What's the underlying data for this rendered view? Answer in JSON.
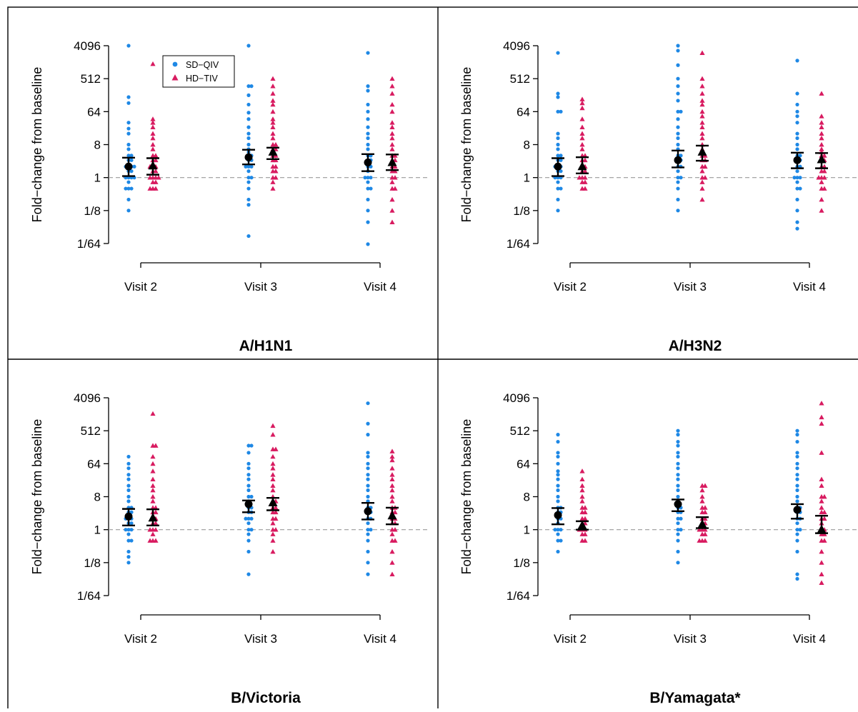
{
  "chart_data": [
    {
      "type": "scatter",
      "title": "A/H1N1",
      "ylabel": "Fold−change from baseline",
      "y_scale": "log2",
      "ylim": [
        "1/64",
        "4096"
      ],
      "y_ticks": [
        "1/64",
        "1/8",
        "1",
        "8",
        "64",
        "512",
        "4096"
      ],
      "categories": [
        "Visit 2",
        "Visit 3",
        "Visit 4"
      ],
      "reference_line": 1,
      "show_legend": true,
      "series": [
        {
          "name": "SD−QIV",
          "points": [
            [
              4096,
              160,
              110,
              32,
              22,
              16,
              8,
              6,
              4,
              4,
              3,
              3,
              2,
              2,
              2,
              2,
              1.5,
              1.5,
              1,
              1,
              1,
              1,
              0.75,
              0.5,
              0.5,
              0.5,
              0.25,
              0.125
            ],
            [
              4096,
              320,
              320,
              180,
              100,
              60,
              40,
              24,
              16,
              12,
              8,
              6,
              5,
              4,
              4,
              3,
              3,
              2,
              2,
              2,
              1.5,
              1,
              1,
              0.75,
              0.5,
              0.25,
              0.18,
              0.025
            ],
            [
              2600,
              320,
              240,
              100,
              64,
              40,
              24,
              16,
              12,
              8,
              6,
              4,
              4,
              3,
              3,
              2,
              2,
              1.5,
              1,
              1,
              1,
              0.75,
              0.5,
              0.5,
              0.25,
              0.125,
              0.06,
              0.015
            ]
          ],
          "mean": [
            2.0,
            3.6,
            2.6
          ],
          "ci": [
            [
              1.1,
              3.5
            ],
            [
              2.3,
              5.8
            ],
            [
              1.5,
              4.4
            ]
          ]
        },
        {
          "name": "HD−TIV",
          "points": [
            [
              1300,
              40,
              32,
              24,
              16,
              12,
              8,
              6,
              4,
              4,
              3,
              3,
              2,
              2,
              2,
              1.5,
              1.5,
              1,
              1,
              1,
              1,
              0.75,
              0.75,
              0.5,
              0.5,
              0.5
            ],
            [
              512,
              320,
              200,
              128,
              100,
              64,
              40,
              32,
              24,
              16,
              12,
              8,
              8,
              6,
              6,
              5,
              4,
              4,
              3,
              3,
              2,
              2,
              1.5,
              1.5,
              1,
              1,
              0.75,
              0.5
            ],
            [
              512,
              320,
              200,
              100,
              64,
              32,
              24,
              16,
              12,
              8,
              6,
              4,
              4,
              3,
              3,
              2,
              2,
              1.5,
              1.5,
              1,
              1,
              0.75,
              0.5,
              0.5,
              0.25,
              0.125,
              0.06
            ]
          ],
          "mean": [
            2.1,
            5.0,
            2.6
          ],
          "ci": [
            [
              1.2,
              3.4
            ],
            [
              3.2,
              6.6
            ],
            [
              1.6,
              4.3
            ]
          ]
        }
      ]
    },
    {
      "type": "scatter",
      "title": "A/H3N2",
      "ylabel": "Fold−change from baseline",
      "y_scale": "log2",
      "ylim": [
        "1/64",
        "4096"
      ],
      "y_ticks": [
        "1/64",
        "1/8",
        "1",
        "8",
        "64",
        "512",
        "4096"
      ],
      "categories": [
        "Visit 2",
        "Visit 3",
        "Visit 4"
      ],
      "reference_line": 1,
      "show_legend": false,
      "series": [
        {
          "name": "SD−QIV",
          "points": [
            [
              2600,
              200,
              160,
              64,
              64,
              16,
              12,
              8,
              6,
              4,
              4,
              3,
              3,
              2,
              2,
              2,
              1.5,
              1.5,
              1,
              1,
              1,
              0.75,
              0.5,
              0.5,
              0.25,
              0.125
            ],
            [
              4096,
              3000,
              1200,
              512,
              320,
              200,
              128,
              64,
              64,
              40,
              24,
              16,
              12,
              8,
              6,
              4,
              4,
              3,
              3,
              2,
              2,
              1.5,
              1,
              1,
              0.75,
              0.5,
              0.25,
              0.125
            ],
            [
              1600,
              200,
              100,
              64,
              48,
              32,
              16,
              12,
              8,
              6,
              4,
              4,
              3,
              3,
              2,
              2,
              1.5,
              1,
              1,
              1,
              0.75,
              0.5,
              0.5,
              0.25,
              0.125,
              0.06,
              0.04
            ]
          ],
          "mean": [
            2.0,
            3.0,
            3.0
          ],
          "ci": [
            [
              1.1,
              3.4
            ],
            [
              1.9,
              5.5
            ],
            [
              1.8,
              4.8
            ]
          ]
        },
        {
          "name": "HD−TIV",
          "points": [
            [
              140,
              110,
              80,
              40,
              24,
              16,
              12,
              8,
              6,
              4,
              4,
              3,
              3,
              2,
              2,
              1.5,
              1.5,
              1,
              1,
              1,
              0.75,
              0.75,
              0.5,
              0.5
            ],
            [
              2600,
              512,
              320,
              200,
              128,
              100,
              64,
              48,
              32,
              24,
              16,
              12,
              8,
              6,
              5,
              4,
              4,
              3,
              3,
              2,
              2,
              1.5,
              1,
              1,
              0.75,
              0.5,
              0.25
            ],
            [
              200,
              48,
              32,
              24,
              16,
              12,
              8,
              6,
              5,
              4,
              4,
              3,
              3,
              2,
              2,
              1.5,
              1.5,
              1,
              1,
              1,
              0.75,
              0.5,
              0.5,
              0.25,
              0.125
            ]
          ],
          "mean": [
            2.0,
            5.0,
            3.1
          ],
          "ci": [
            [
              1.3,
              3.6
            ],
            [
              2.9,
              7.5
            ],
            [
              1.8,
              4.7
            ]
          ]
        }
      ]
    },
    {
      "type": "scatter",
      "title": "B/Victoria",
      "ylabel": "Fold−change from baseline",
      "y_scale": "log2",
      "ylim": [
        "1/64",
        "4096"
      ],
      "y_ticks": [
        "1/64",
        "1/8",
        "1",
        "8",
        "64",
        "512",
        "4096"
      ],
      "categories": [
        "Visit 2",
        "Visit 3",
        "Visit 4"
      ],
      "reference_line": 1,
      "show_legend": false,
      "series": [
        {
          "name": "SD−QIV",
          "points": [
            [
              100,
              64,
              48,
              32,
              24,
              16,
              12,
              8,
              6,
              4,
              4,
              3,
              3,
              2,
              2,
              2,
              1.5,
              1.5,
              1,
              1,
              1,
              0.75,
              0.5,
              0.5,
              0.25,
              0.18,
              0.125
            ],
            [
              200,
              200,
              128,
              64,
              48,
              32,
              24,
              16,
              12,
              8,
              8,
              6,
              5,
              4,
              4,
              3,
              3,
              2,
              2,
              2,
              1.5,
              1,
              1,
              0.75,
              0.5,
              0.25,
              0.06
            ],
            [
              2900,
              800,
              400,
              128,
              100,
              64,
              48,
              32,
              24,
              16,
              12,
              8,
              6,
              4,
              4,
              3,
              3,
              2,
              2,
              1.5,
              1,
              1,
              0.75,
              0.5,
              0.25,
              0.125,
              0.06
            ]
          ],
          "mean": [
            2.3,
            5.0,
            3.2
          ],
          "ci": [
            [
              1.3,
              3.7
            ],
            [
              3.0,
              6.3
            ],
            [
              1.9,
              5.4
            ]
          ]
        },
        {
          "name": "HD−TIV",
          "points": [
            [
              1500,
              200,
              200,
              100,
              64,
              40,
              24,
              16,
              12,
              8,
              6,
              4,
              4,
              3,
              3,
              2,
              2,
              1.5,
              1.5,
              1,
              1,
              1,
              0.75,
              0.5,
              0.5,
              0.5
            ],
            [
              700,
              400,
              160,
              160,
              100,
              64,
              48,
              32,
              24,
              16,
              12,
              8,
              6,
              6,
              5,
              4,
              4,
              3,
              3,
              2,
              2,
              1.5,
              1,
              1,
              0.75,
              0.5,
              0.25
            ],
            [
              140,
              100,
              80,
              48,
              32,
              24,
              16,
              12,
              8,
              6,
              4,
              4,
              3,
              3,
              2,
              2,
              1.5,
              1.5,
              1,
              1,
              0.75,
              0.5,
              0.5,
              0.25,
              0.125,
              0.06
            ]
          ],
          "mean": [
            2.1,
            5.5,
            2.4
          ],
          "ci": [
            [
              1.3,
              3.6
            ],
            [
              3.4,
              7.4
            ],
            [
              1.4,
              4.0
            ]
          ]
        }
      ]
    },
    {
      "type": "scatter",
      "title": "B/Yamagata*",
      "ylabel": "Fold−change from baseline",
      "y_scale": "log2",
      "ylim": [
        "1/64",
        "4096"
      ],
      "y_ticks": [
        "1/64",
        "1/8",
        "1",
        "8",
        "64",
        "512",
        "4096"
      ],
      "categories": [
        "Visit 2",
        "Visit 3",
        "Visit 4"
      ],
      "reference_line": 1,
      "show_legend": false,
      "series": [
        {
          "name": "SD−QIV",
          "points": [
            [
              400,
              256,
              128,
              100,
              64,
              40,
              32,
              24,
              16,
              12,
              8,
              6,
              4,
              4,
              3,
              3,
              2,
              2,
              1.5,
              1,
              1,
              1,
              0.75,
              0.5,
              0.5,
              0.25
            ],
            [
              512,
              400,
              256,
              200,
              128,
              100,
              64,
              48,
              32,
              24,
              16,
              12,
              8,
              6,
              4,
              4,
              3,
              3,
              2,
              2,
              1.5,
              1,
              1,
              0.75,
              0.5,
              0.25,
              0.125
            ],
            [
              512,
              400,
              256,
              128,
              100,
              64,
              48,
              32,
              24,
              16,
              12,
              8,
              6,
              4,
              4,
              3,
              3,
              2,
              2,
              1.5,
              1,
              1,
              0.75,
              0.5,
              0.25,
              0.06,
              0.045
            ]
          ],
          "mean": [
            2.5,
            5.0,
            3.5
          ],
          "ci": [
            [
              1.4,
              3.9
            ],
            [
              3.2,
              6.7
            ],
            [
              2.0,
              5.0
            ]
          ]
        },
        {
          "name": "HD−TIV",
          "points": [
            [
              40,
              24,
              16,
              12,
              8,
              6,
              4,
              4,
              3,
              3,
              2,
              2,
              1.5,
              1.5,
              1,
              1,
              1,
              0.75,
              0.75,
              0.5,
              0.5
            ],
            [
              16,
              16,
              12,
              8,
              6,
              4,
              4,
              3,
              3,
              2,
              2,
              1.5,
              1.5,
              1,
              1,
              1,
              0.75,
              0.75,
              0.5,
              0.5,
              0.5
            ],
            [
              2900,
              1200,
              800,
              128,
              24,
              16,
              8,
              8,
              6,
              4,
              3,
              3,
              2,
              2,
              1.5,
              1,
              1,
              0.75,
              0.75,
              0.5,
              0.5,
              0.25,
              0.125,
              0.06,
              0.035
            ]
          ],
          "mean": [
            1.3,
            1.4,
            1.0
          ],
          "ci": [
            [
              1.0,
              1.7
            ],
            [
              1.1,
              2.2
            ],
            [
              0.8,
              2.4
            ]
          ]
        }
      ]
    }
  ],
  "legend": [
    {
      "label": "SD−QIV",
      "marker": "circle",
      "color": "#1E88E5"
    },
    {
      "label": "HD−TIV",
      "marker": "triangle",
      "color": "#D81B60"
    }
  ],
  "colors": {
    "sd_qiv": "#1E88E5",
    "hd_tiv": "#D81B60",
    "summary": "#000000",
    "reference_line": "#999999"
  }
}
